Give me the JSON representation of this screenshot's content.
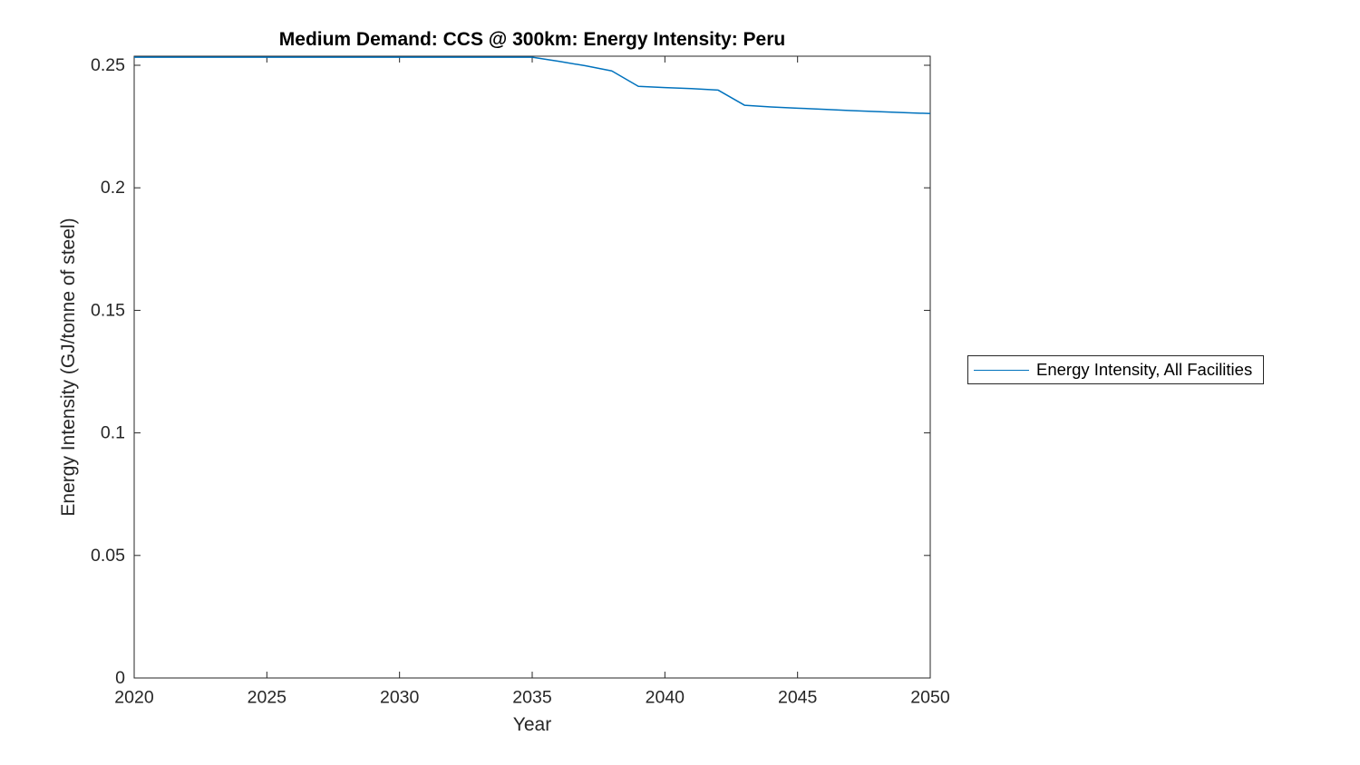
{
  "figure": {
    "title": "Medium Demand: CCS @ 300km: Energy Intensity: Peru",
    "x_axis_label": "Year",
    "y_axis_label": "Energy Intensity (GJ/tonne of steel)",
    "legend": {
      "label": "Energy Intensity, All Facilities"
    }
  },
  "chart_data": {
    "type": "line",
    "title": "Medium Demand: CCS @ 300km: Energy Intensity: Peru",
    "xlabel": "Year",
    "ylabel": "Energy Intensity (GJ/tonne of steel)",
    "x": [
      2020,
      2021,
      2022,
      2023,
      2024,
      2025,
      2026,
      2027,
      2028,
      2029,
      2030,
      2031,
      2032,
      2033,
      2034,
      2035,
      2036,
      2037,
      2038,
      2039,
      2040,
      2041,
      2042,
      2043,
      2044,
      2045,
      2046,
      2047,
      2048,
      2049,
      2050
    ],
    "series": [
      {
        "name": "Energy Intensity, All Facilities",
        "color": "#0072BD",
        "values": [
          0.2533,
          0.2533,
          0.2533,
          0.2533,
          0.2533,
          0.2533,
          0.2533,
          0.2533,
          0.2533,
          0.2533,
          0.2533,
          0.2533,
          0.2533,
          0.2533,
          0.2533,
          0.2533,
          0.2516,
          0.2498,
          0.2477,
          0.2414,
          0.2409,
          0.2405,
          0.2399,
          0.2337,
          0.233,
          0.2325,
          0.232,
          0.2315,
          0.2311,
          0.2307,
          0.2303
        ]
      }
    ],
    "xlim": [
      2020,
      2050
    ],
    "ylim": [
      0,
      0.2537
    ],
    "xticks": [
      2020,
      2025,
      2030,
      2035,
      2040,
      2045,
      2050
    ],
    "xtick_labels": [
      "2020",
      "2025",
      "2030",
      "2035",
      "2040",
      "2045",
      "2050"
    ],
    "yticks": [
      0,
      0.05,
      0.1,
      0.15,
      0.2,
      0.25
    ],
    "ytick_labels": [
      "0",
      "0.05",
      "0.1",
      "0.15",
      "0.2",
      "0.25"
    ],
    "grid": false,
    "box": true,
    "tick_direction": "in",
    "legend_position": "right-outside",
    "line_width": 1.5,
    "axis_color": "#262626"
  }
}
